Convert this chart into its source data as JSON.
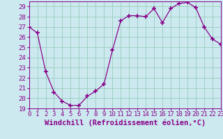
{
  "x": [
    0,
    1,
    2,
    3,
    4,
    5,
    6,
    7,
    8,
    9,
    10,
    11,
    12,
    13,
    14,
    15,
    16,
    17,
    18,
    19,
    20,
    21,
    22,
    23
  ],
  "y": [
    27.0,
    26.4,
    22.6,
    20.6,
    19.7,
    19.3,
    19.3,
    20.2,
    20.7,
    21.4,
    24.7,
    27.6,
    28.1,
    28.1,
    28.0,
    28.8,
    27.4,
    28.8,
    29.3,
    29.4,
    28.9,
    27.0,
    25.8,
    25.3
  ],
  "xlim": [
    0,
    23
  ],
  "ylim": [
    19,
    29.5
  ],
  "yticks": [
    19,
    20,
    21,
    22,
    23,
    24,
    25,
    26,
    27,
    28,
    29
  ],
  "xticks": [
    0,
    1,
    2,
    3,
    4,
    5,
    6,
    7,
    8,
    9,
    10,
    11,
    12,
    13,
    14,
    15,
    16,
    17,
    18,
    19,
    20,
    21,
    22,
    23
  ],
  "xlabel": "Windchill (Refroidissement éolien,°C)",
  "line_color": "#880088",
  "marker": "+",
  "marker_size": 4,
  "bg_color": "#cce9f0",
  "grid_color": "#99ccbb",
  "tick_color": "#880088",
  "label_color": "#880088",
  "tick_fontsize": 6.5,
  "xlabel_fontsize": 7.5
}
